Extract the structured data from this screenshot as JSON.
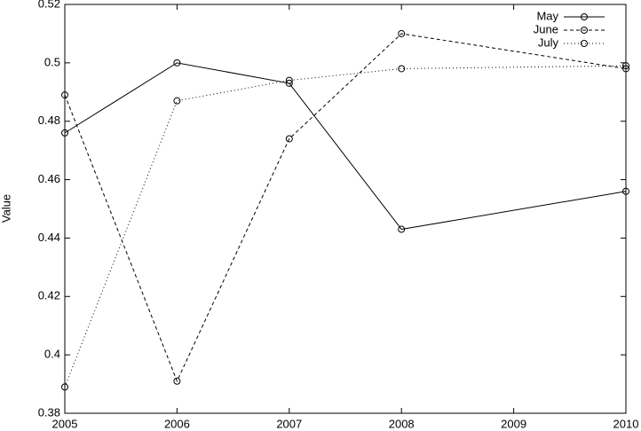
{
  "chart_data": {
    "type": "line",
    "ylabel": "Value",
    "x": [
      2005,
      2006,
      2007,
      2008,
      2010
    ],
    "series": [
      {
        "name": "May",
        "color": "#000000",
        "line_style": "solid",
        "values": [
          0.476,
          0.5,
          0.493,
          0.443,
          0.456
        ]
      },
      {
        "name": "June",
        "color": "#000000",
        "line_style": "dashed",
        "values": [
          0.489,
          0.391,
          0.474,
          0.51,
          0.498
        ]
      },
      {
        "name": "July",
        "color": "#000000",
        "line_style": "dotted",
        "values": [
          0.389,
          0.487,
          0.494,
          0.498,
          0.499
        ]
      }
    ],
    "xlim": [
      2005,
      2010
    ],
    "xticks": [
      2005,
      2006,
      2007,
      2008,
      2009,
      2010
    ],
    "ylim": [
      0.38,
      0.52
    ],
    "yticks": [
      0.38,
      0.4,
      0.42,
      0.44,
      0.46,
      0.48,
      0.5,
      0.52
    ],
    "grid": false,
    "legend": "upper-right"
  }
}
